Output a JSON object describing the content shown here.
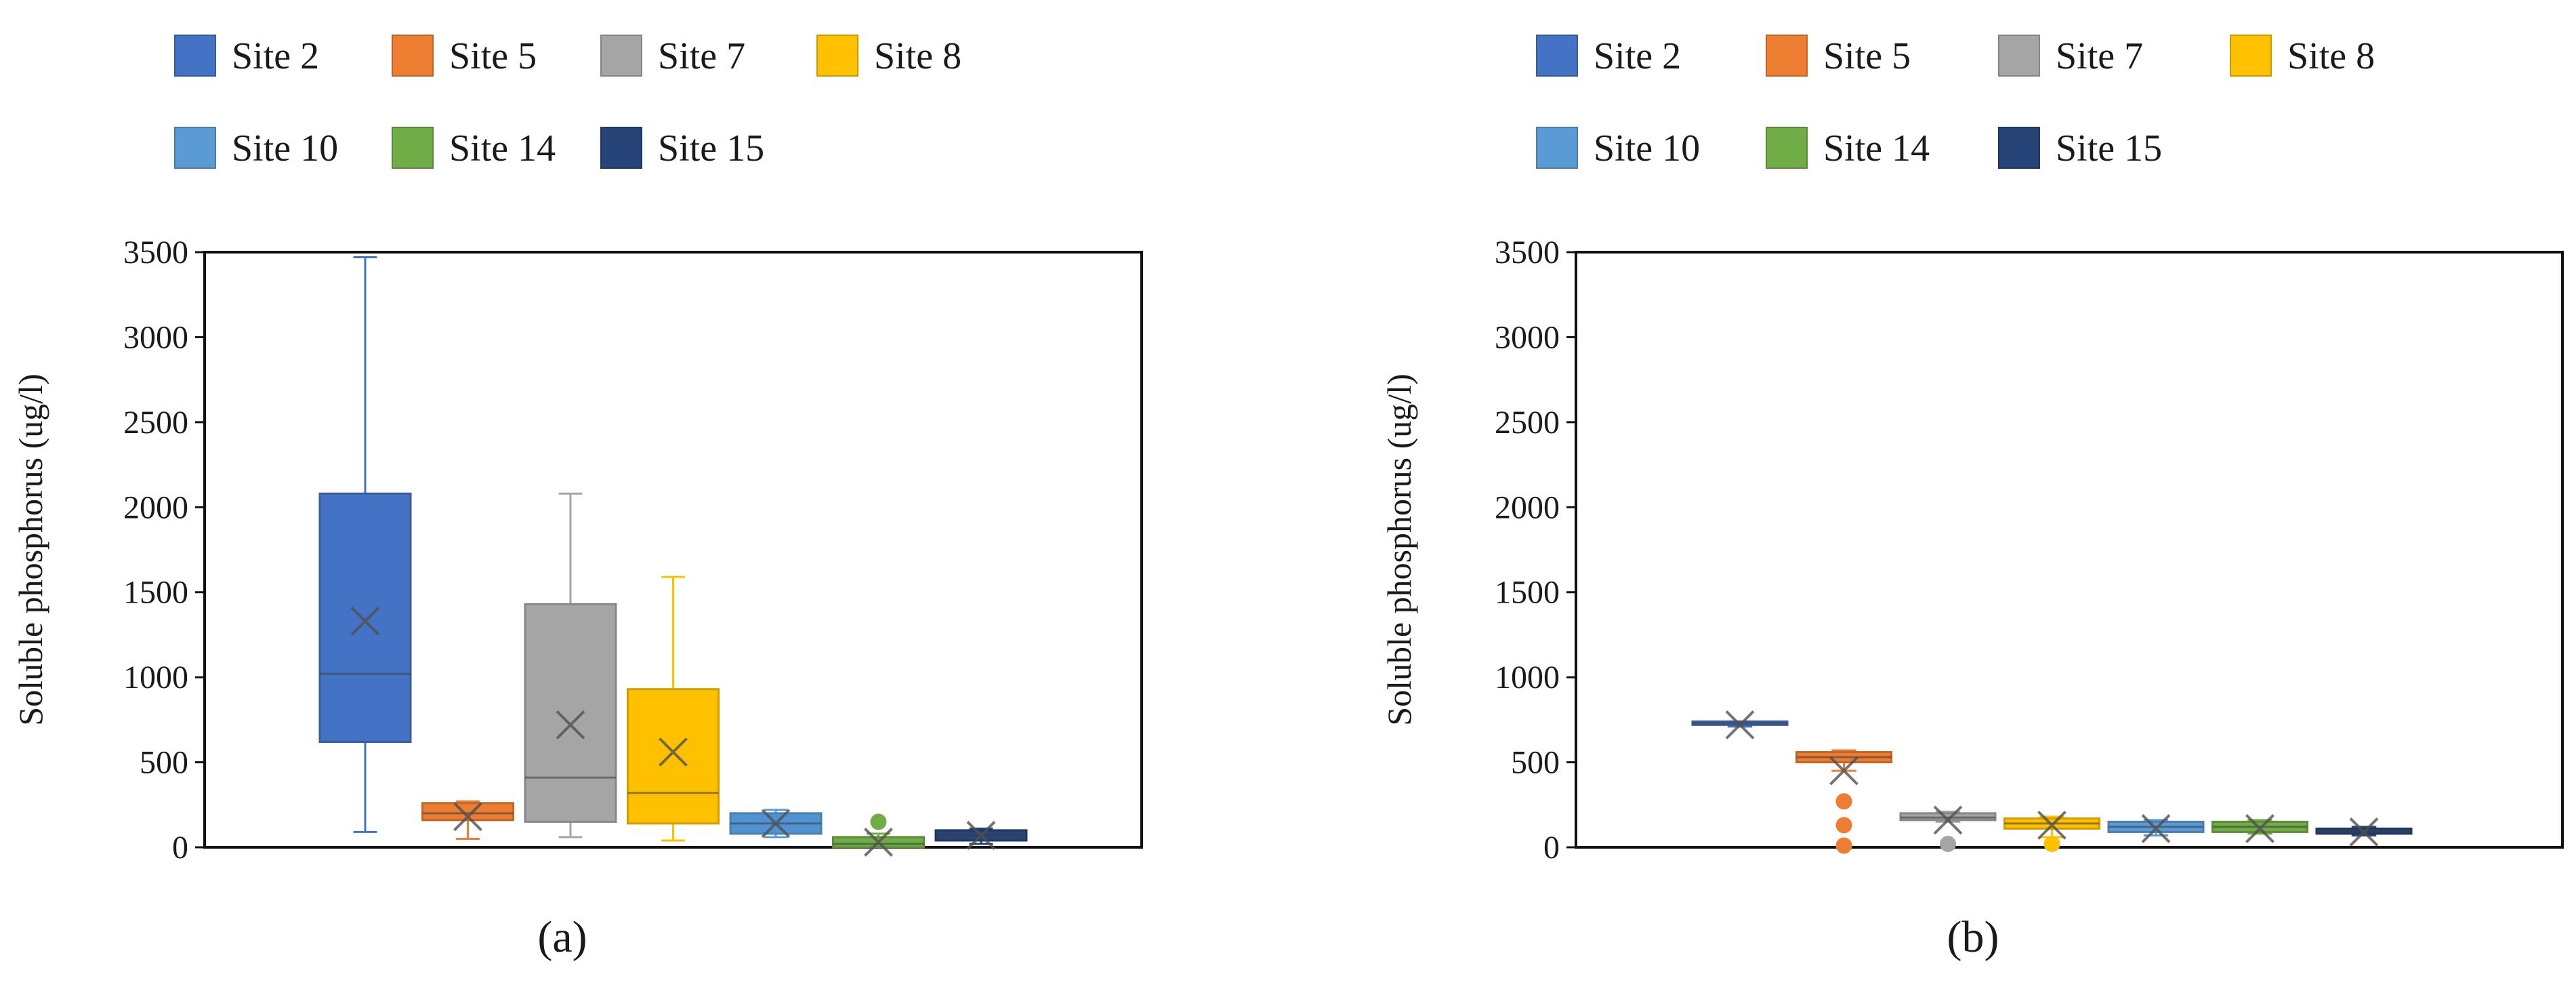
{
  "chart_data": [
    {
      "type": "box",
      "panel_label": "(a)",
      "ylabel": "Soluble phosphorus (ug/l)",
      "ylim": [
        0,
        3500
      ],
      "yticks": [
        0,
        500,
        1000,
        1500,
        2000,
        2500,
        3000,
        3500
      ],
      "grid": false,
      "legend_position": "top",
      "series": [
        {
          "name": "Site 2",
          "color": "#4472C4",
          "min": 90,
          "q1": 620,
          "median": 1020,
          "q3": 2080,
          "max": 3470,
          "mean": 1330,
          "outliers": []
        },
        {
          "name": "Site 5",
          "color": "#ED7D31",
          "min": 50,
          "q1": 160,
          "median": 200,
          "q3": 260,
          "max": 270,
          "mean": 180,
          "outliers": []
        },
        {
          "name": "Site 7",
          "color": "#A5A5A5",
          "min": 60,
          "q1": 150,
          "median": 410,
          "q3": 1430,
          "max": 2080,
          "mean": 720,
          "outliers": []
        },
        {
          "name": "Site 8",
          "color": "#FFC000",
          "min": 40,
          "q1": 140,
          "median": 320,
          "q3": 930,
          "max": 1590,
          "mean": 560,
          "outliers": []
        },
        {
          "name": "Site 10",
          "color": "#5B9BD5",
          "min": 60,
          "q1": 80,
          "median": 140,
          "q3": 200,
          "max": 220,
          "mean": 140,
          "outliers": []
        },
        {
          "name": "Site 14",
          "color": "#70AD47",
          "min": 0,
          "q1": 0,
          "median": 20,
          "q3": 60,
          "max": 80,
          "mean": 30,
          "outliers": [
            150
          ]
        },
        {
          "name": "Site 15",
          "color": "#264478",
          "min": 20,
          "q1": 40,
          "median": 70,
          "q3": 100,
          "max": 110,
          "mean": 70,
          "outliers": []
        }
      ]
    },
    {
      "type": "box",
      "panel_label": "(b)",
      "ylabel": "Soluble phosphorus (ug/l)",
      "ylim": [
        0,
        3500
      ],
      "yticks": [
        0,
        500,
        1000,
        1500,
        2000,
        2500,
        3000,
        3500
      ],
      "grid": false,
      "legend_position": "top",
      "series": [
        {
          "name": "Site 2",
          "color": "#4472C4",
          "min": 710,
          "q1": 720,
          "median": 730,
          "q3": 740,
          "max": 740,
          "mean": 720,
          "outliers": []
        },
        {
          "name": "Site 5",
          "color": "#ED7D31",
          "min": 450,
          "q1": 500,
          "median": 530,
          "q3": 560,
          "max": 570,
          "mean": 450,
          "outliers": [
            270,
            130,
            10
          ]
        },
        {
          "name": "Site 7",
          "color": "#A5A5A5",
          "min": 150,
          "q1": 160,
          "median": 175,
          "q3": 200,
          "max": 210,
          "mean": 160,
          "outliers": [
            20
          ]
        },
        {
          "name": "Site 8",
          "color": "#FFC000",
          "min": 60,
          "q1": 110,
          "median": 140,
          "q3": 170,
          "max": 180,
          "mean": 130,
          "outliers": [
            20
          ]
        },
        {
          "name": "Site 10",
          "color": "#5B9BD5",
          "min": 70,
          "q1": 90,
          "median": 120,
          "q3": 150,
          "max": 160,
          "mean": 110,
          "outliers": []
        },
        {
          "name": "Site 14",
          "color": "#70AD47",
          "min": 80,
          "q1": 90,
          "median": 120,
          "q3": 150,
          "max": 160,
          "mean": 110,
          "outliers": []
        },
        {
          "name": "Site 15",
          "color": "#264478",
          "min": 70,
          "q1": 80,
          "median": 95,
          "q3": 110,
          "max": 120,
          "mean": 90,
          "outliers": []
        }
      ]
    }
  ]
}
